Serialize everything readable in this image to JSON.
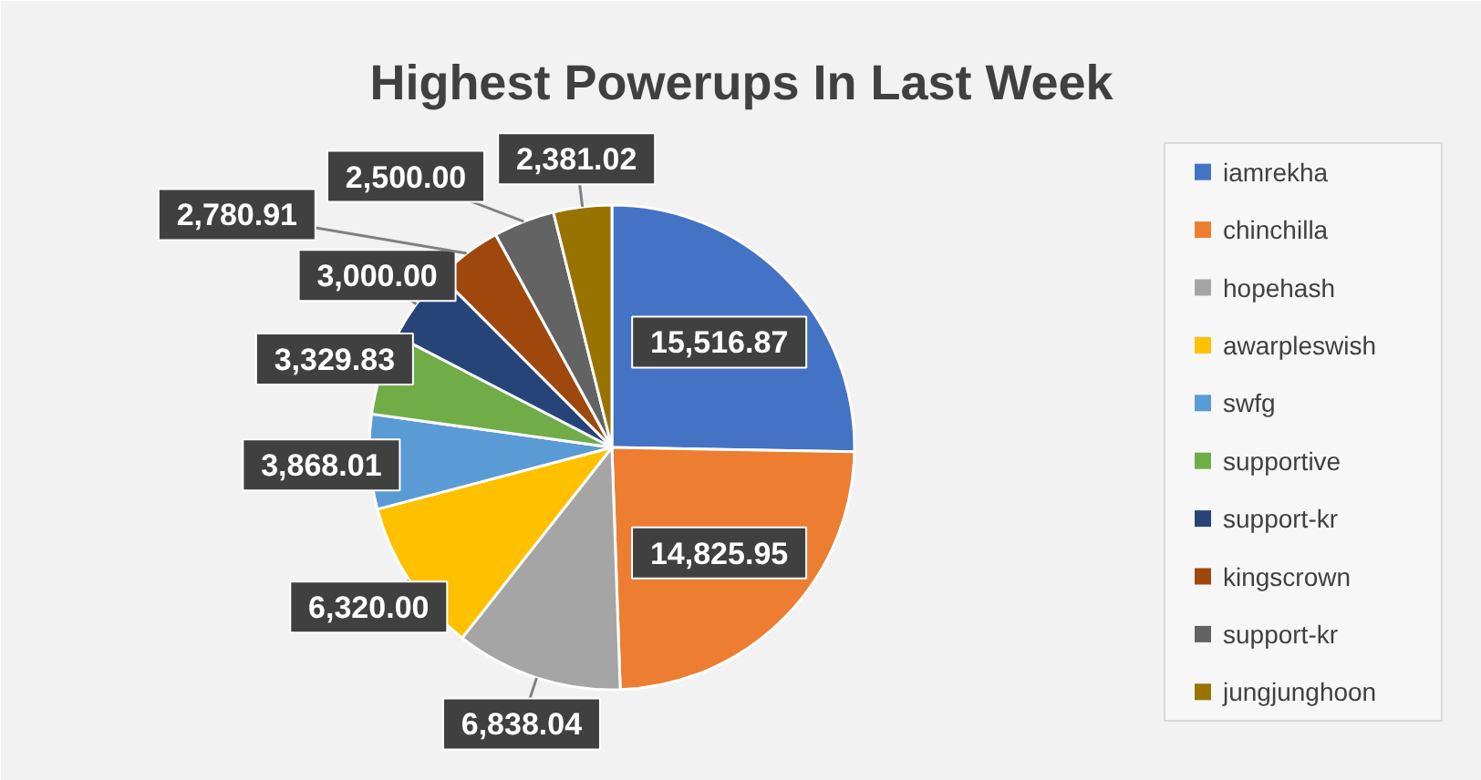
{
  "chart_data": {
    "type": "pie",
    "title": "Highest Powerups In Last Week",
    "categories": [
      "iamrekha",
      "chinchilla",
      "hopehash",
      "awarpleswish",
      "swfg",
      "supportive",
      "support-kr",
      "kingscrown",
      "support-kr",
      "jungjunghoon"
    ],
    "values": [
      15516.87,
      14825.95,
      6838.04,
      6320.0,
      3868.01,
      3329.83,
      3000.0,
      2780.91,
      2500.0,
      2381.02
    ],
    "value_labels": [
      "15,516.87",
      "14,825.95",
      "6,838.04",
      "6,320.00",
      "3,868.01",
      "3,329.83",
      "3,000.00",
      "2,780.91",
      "2,500.00",
      "2,381.02"
    ],
    "colors": [
      "#4472c4",
      "#ed7d31",
      "#a5a5a5",
      "#ffc000",
      "#5b9bd5",
      "#70ad47",
      "#264478",
      "#9e480e",
      "#636363",
      "#997300"
    ],
    "legend": "right"
  }
}
